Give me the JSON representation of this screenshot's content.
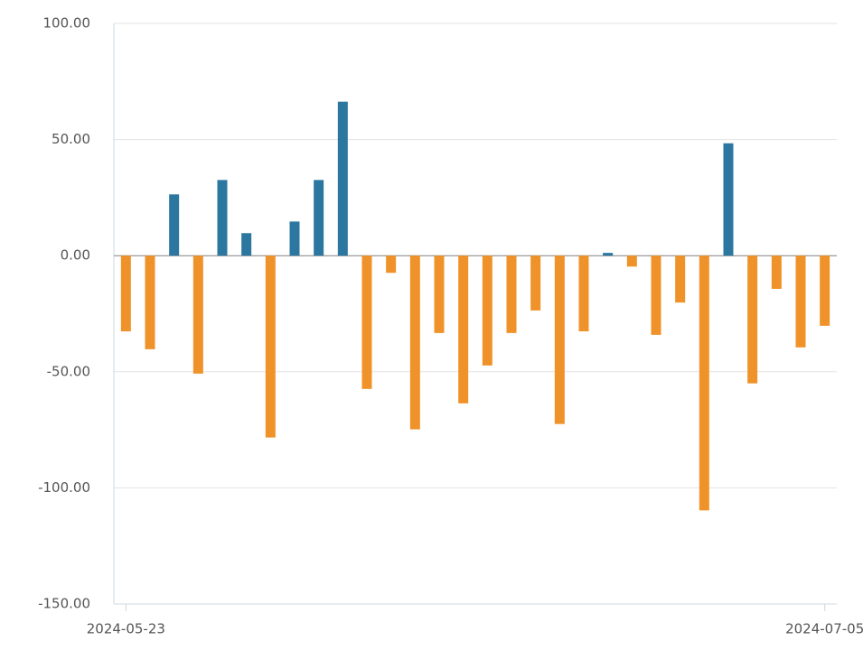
{
  "chart_data": {
    "type": "bar",
    "categories": [
      "2024-05-23",
      null,
      null,
      null,
      null,
      null,
      null,
      null,
      null,
      null,
      null,
      null,
      null,
      null,
      null,
      null,
      null,
      null,
      null,
      null,
      null,
      null,
      null,
      null,
      null,
      null,
      null,
      null,
      null,
      "2024-07-05"
    ],
    "values": [
      -32.6,
      -40.3,
      26.4,
      -50.8,
      32.6,
      9.7,
      -78.3,
      14.7,
      32.6,
      66.3,
      -57.4,
      -7.4,
      -74.8,
      -33.3,
      -63.6,
      -47.3,
      -33.3,
      -23.6,
      -72.5,
      -32.6,
      1.2,
      -4.7,
      -34.1,
      -20.2,
      -109.7,
      48.4,
      -55.0,
      -14.3,
      -39.5,
      -30.2
    ],
    "positive_color": "#2b77a0",
    "negative_color": "#f0922a",
    "ylim": [
      -150,
      100
    ],
    "yticks": [
      {
        "value": -150,
        "label": "-150.00"
      },
      {
        "value": -100,
        "label": "-100.00"
      },
      {
        "value": -50,
        "label": "-50.00"
      },
      {
        "value": 0,
        "label": "0.00"
      },
      {
        "value": 50,
        "label": "50.00"
      },
      {
        "value": 100,
        "label": "100.00"
      }
    ],
    "grid": true
  }
}
